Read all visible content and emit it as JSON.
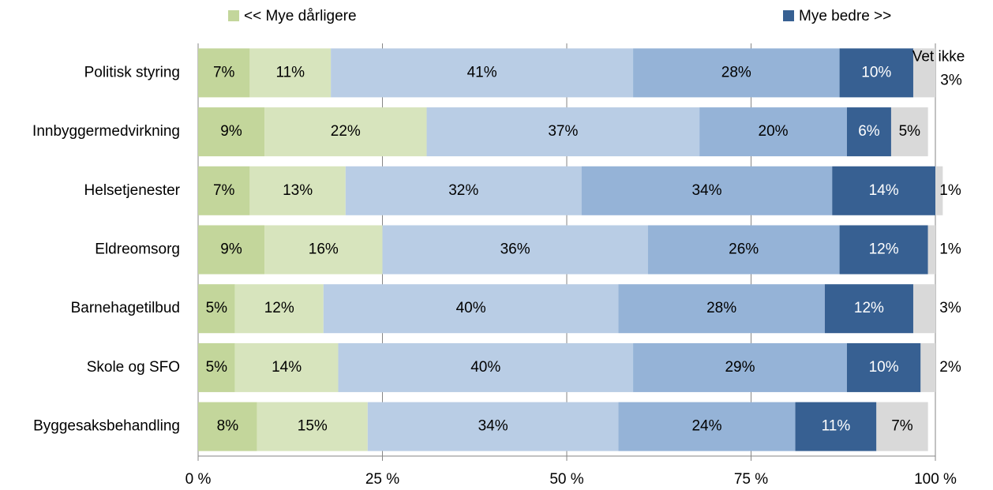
{
  "chart_data": {
    "type": "stacked-bar-horizontal",
    "categories": [
      "Politisk styring",
      "Innbyggermedvirkning",
      "Helsetjenester",
      "Eldreomsorg",
      "Barnehagetilbud",
      "Skole og SFO",
      "Byggesaksbehandling"
    ],
    "series": [
      {
        "name": "<< Mye dårligere",
        "color": "#c3d69b",
        "values": [
          7,
          9,
          7,
          9,
          5,
          5,
          8
        ],
        "value_labels": [
          "7%",
          "9%",
          "7%",
          "9%",
          "5%",
          "5%",
          "8%"
        ]
      },
      {
        "name": null,
        "color": "#d7e4bd",
        "values": [
          11,
          22,
          13,
          16,
          12,
          14,
          15
        ],
        "value_labels": [
          "11%",
          "22%",
          "13%",
          "16%",
          "12%",
          "14%",
          "15%"
        ]
      },
      {
        "name": null,
        "color": "#b9cde5",
        "values": [
          41,
          37,
          32,
          36,
          40,
          40,
          34
        ],
        "value_labels": [
          "41%",
          "37%",
          "32%",
          "36%",
          "40%",
          "40%",
          "34%"
        ]
      },
      {
        "name": null,
        "color": "#95b3d7",
        "values": [
          28,
          20,
          34,
          26,
          28,
          29,
          24
        ],
        "value_labels": [
          "28%",
          "20%",
          "34%",
          "26%",
          "28%",
          "29%",
          "24%"
        ]
      },
      {
        "name": "Mye bedre >>",
        "color": "#376092",
        "values": [
          10,
          6,
          14,
          12,
          12,
          10,
          11
        ],
        "value_labels": [
          "10%",
          "6%",
          "14%",
          "12%",
          "12%",
          "10%",
          "11%"
        ]
      },
      {
        "name": null,
        "color": "#d9d9d9",
        "values": [
          3,
          5,
          1,
          1,
          3,
          2,
          7
        ],
        "value_labels": [
          "3%",
          "5%",
          "1%",
          "1%",
          "3%",
          "2%",
          "7%"
        ]
      }
    ],
    "annotation": "Vet ikke",
    "xlim": [
      0,
      100
    ],
    "xticks": [
      {
        "value": 0,
        "label": "0 %"
      },
      {
        "value": 25,
        "label": "25 %"
      },
      {
        "value": 50,
        "label": "50 %"
      },
      {
        "value": 75,
        "label": "75 %"
      },
      {
        "value": 100,
        "label": "100 %"
      }
    ],
    "grid": true
  }
}
